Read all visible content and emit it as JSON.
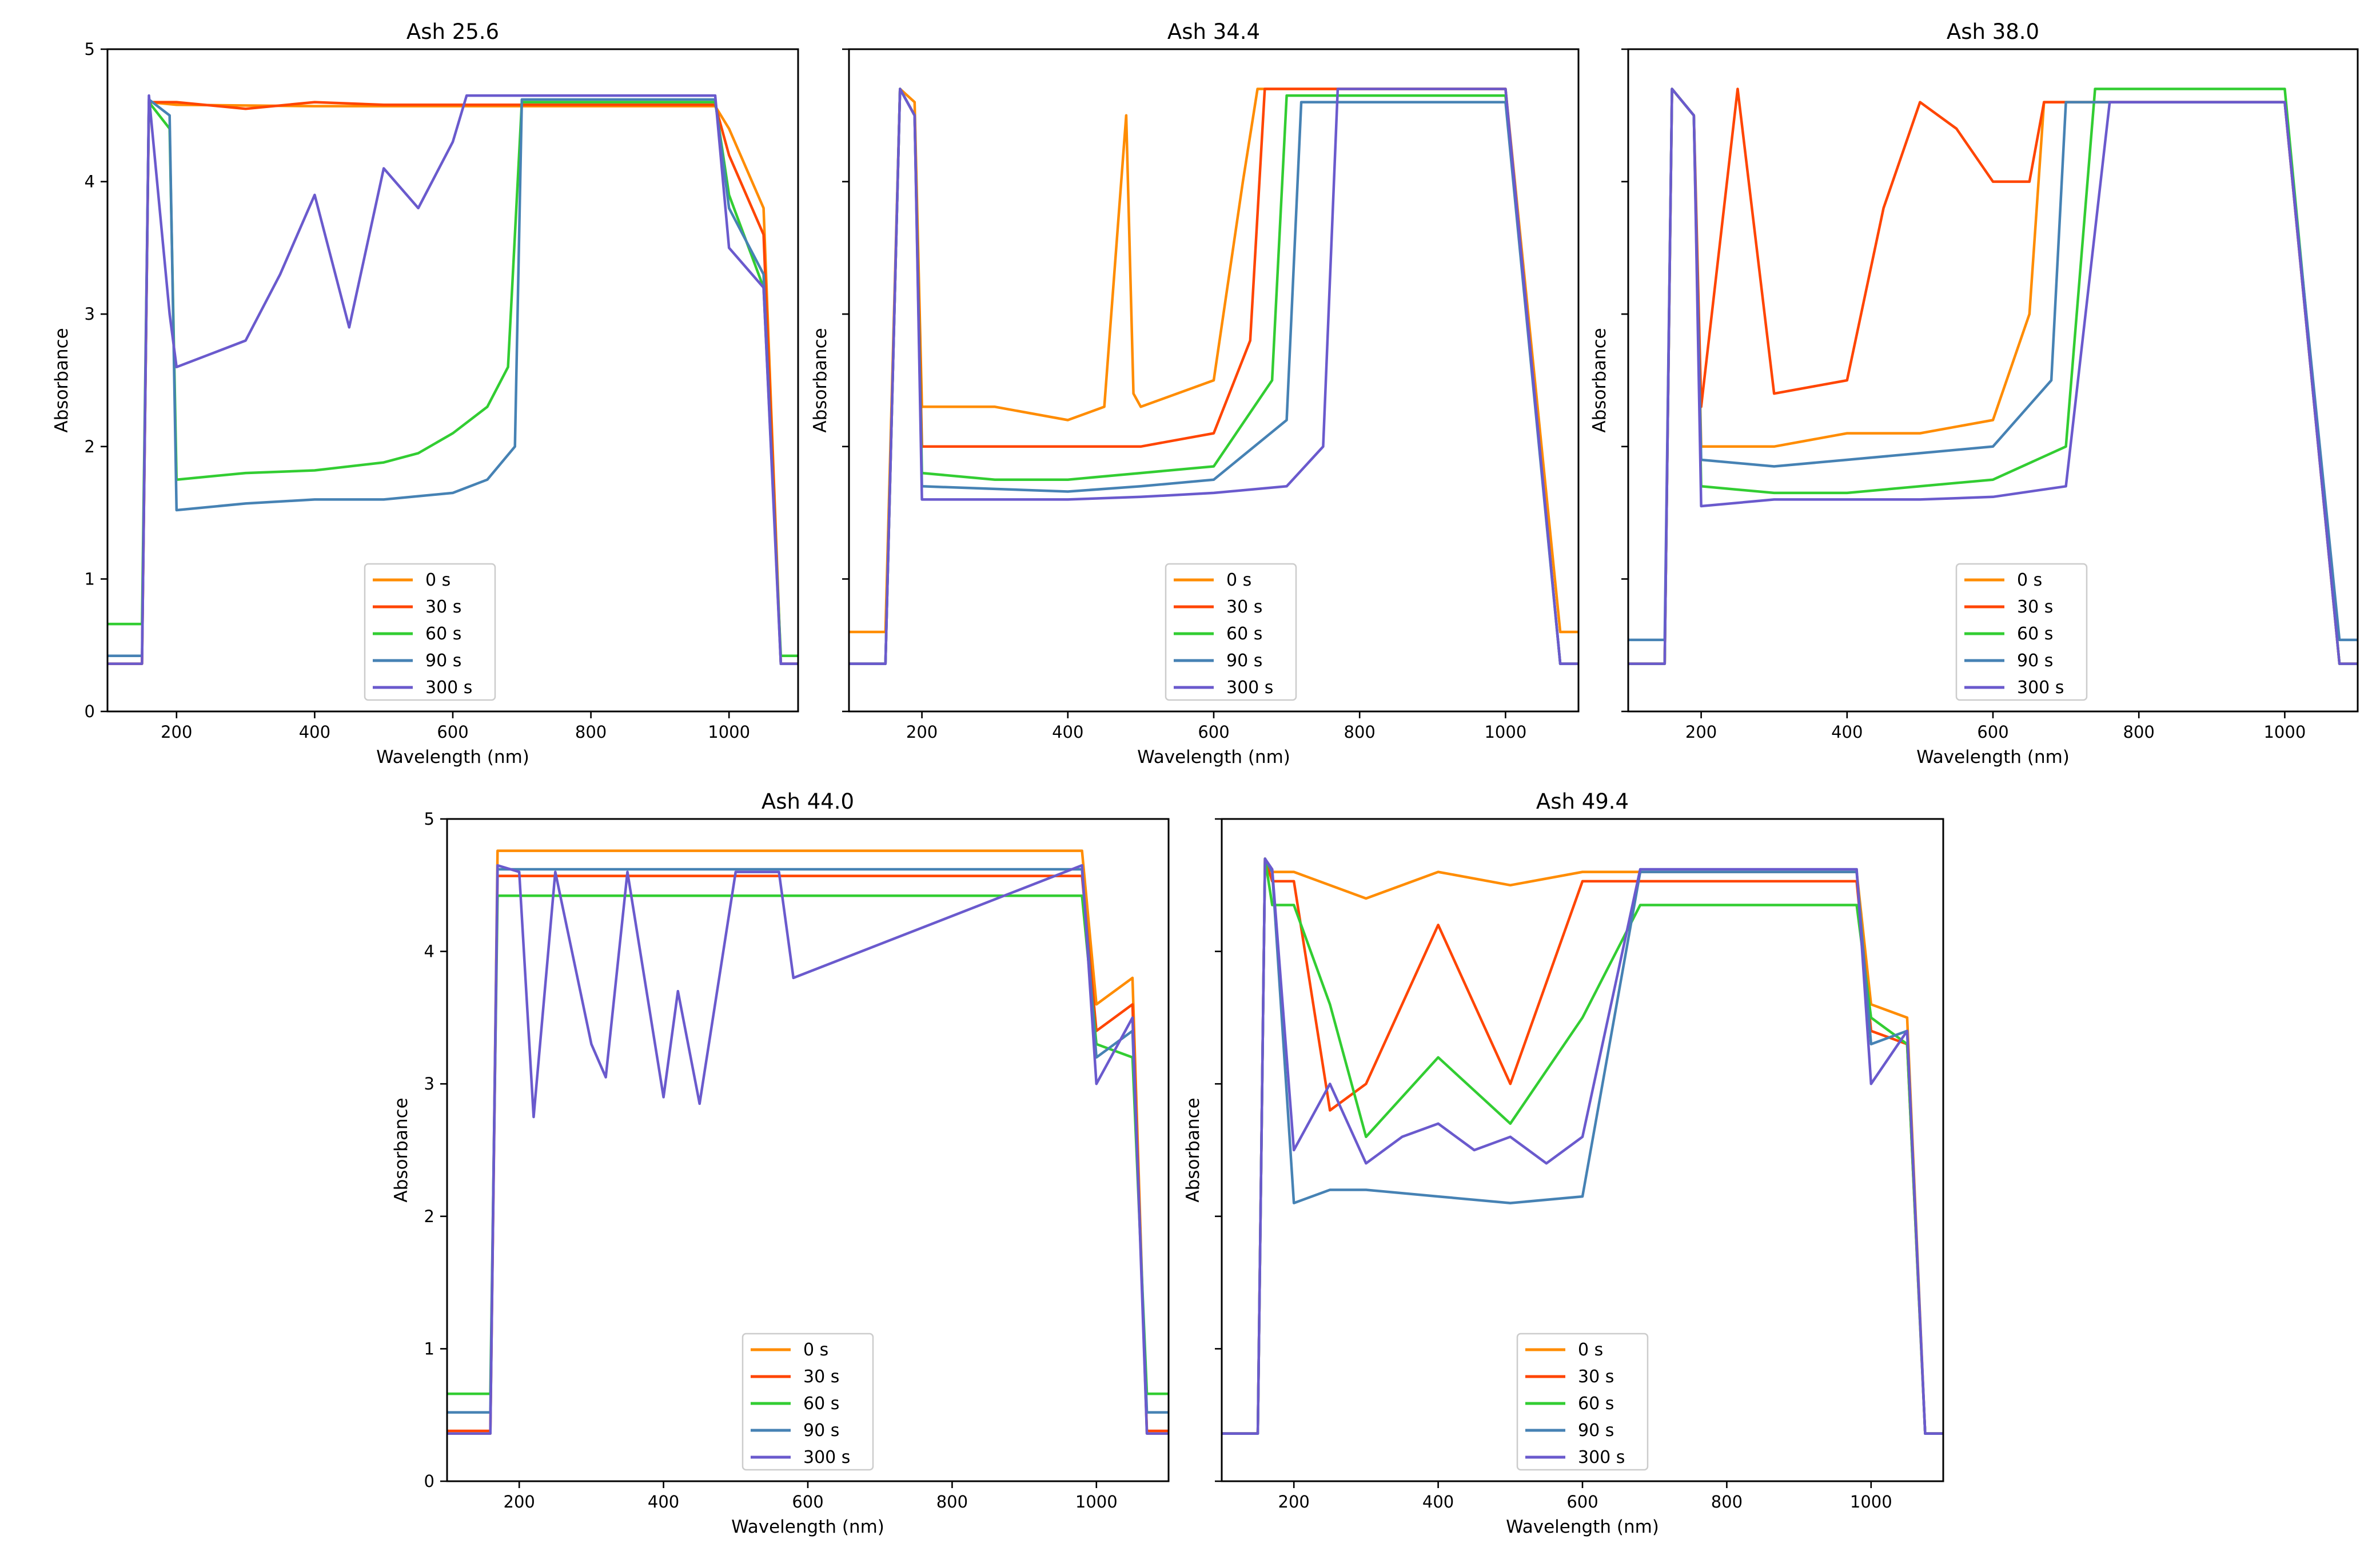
{
  "figure": {
    "x_axis_label": "Wavelength (nm)",
    "y_axis_label": "Absorbance"
  },
  "legend": [
    {
      "label": "0 s",
      "color": "#ff8c00"
    },
    {
      "label": "30 s",
      "color": "#ff4500"
    },
    {
      "label": "60 s",
      "color": "#32cd32"
    },
    {
      "label": "90 s",
      "color": "#4682b4"
    },
    {
      "label": "300 s",
      "color": "#6a5acd"
    }
  ],
  "chart_data": [
    {
      "type": "line",
      "title": "Ash 25.6",
      "xlabel": "Wavelength (nm)",
      "ylabel": "Absorbance",
      "xlim": [
        100,
        1100
      ],
      "ylim": [
        0,
        5
      ],
      "xticks": [
        200,
        400,
        600,
        800,
        1000
      ],
      "yticks": [
        0,
        1,
        2,
        3,
        4,
        5
      ],
      "legend_position": "bottom-center",
      "series": [
        {
          "name": "0 s",
          "x": [
            100,
            150,
            160,
            200,
            400,
            600,
            800,
            980,
            1000,
            1050,
            1075,
            1100
          ],
          "y": [
            0.36,
            0.36,
            4.6,
            4.58,
            4.57,
            4.57,
            4.57,
            4.57,
            4.4,
            3.8,
            0.36,
            0.36
          ]
        },
        {
          "name": "30 s",
          "x": [
            100,
            150,
            160,
            200,
            300,
            400,
            500,
            600,
            800,
            980,
            1000,
            1050,
            1075,
            1100
          ],
          "y": [
            0.36,
            0.36,
            4.6,
            4.6,
            4.55,
            4.6,
            4.58,
            4.58,
            4.58,
            4.58,
            4.2,
            3.6,
            0.36,
            0.36
          ]
        },
        {
          "name": "60 s",
          "x": [
            100,
            150,
            160,
            190,
            200,
            300,
            400,
            500,
            550,
            600,
            650,
            680,
            700,
            980,
            1000,
            1050,
            1075,
            1100
          ],
          "y": [
            0.66,
            0.66,
            4.6,
            4.4,
            1.75,
            1.8,
            1.82,
            1.88,
            1.95,
            2.1,
            2.3,
            2.6,
            4.6,
            4.6,
            3.9,
            3.2,
            0.42,
            0.42
          ]
        },
        {
          "name": "90 s",
          "x": [
            100,
            150,
            160,
            190,
            200,
            300,
            400,
            500,
            600,
            650,
            690,
            700,
            980,
            1000,
            1050,
            1075,
            1100
          ],
          "y": [
            0.42,
            0.42,
            4.62,
            4.5,
            1.52,
            1.57,
            1.6,
            1.6,
            1.65,
            1.75,
            2.0,
            4.62,
            4.62,
            3.8,
            3.3,
            0.36,
            0.36
          ]
        },
        {
          "name": "300 s",
          "x": [
            100,
            150,
            160,
            190,
            200,
            250,
            300,
            350,
            400,
            450,
            500,
            550,
            600,
            620,
            700,
            980,
            1000,
            1050,
            1075,
            1100
          ],
          "y": [
            0.36,
            0.36,
            4.65,
            3.0,
            2.6,
            2.7,
            2.8,
            3.3,
            3.9,
            2.9,
            4.1,
            3.8,
            4.3,
            4.65,
            4.65,
            4.65,
            3.5,
            3.2,
            0.36,
            0.36
          ]
        }
      ]
    },
    {
      "type": "line",
      "title": "Ash 34.4",
      "xlabel": "Wavelength (nm)",
      "ylabel": "Absorbance",
      "xlim": [
        100,
        1100
      ],
      "ylim": [
        0,
        5
      ],
      "xticks": [
        200,
        400,
        600,
        800,
        1000
      ],
      "yticks": [
        0,
        1,
        2,
        3,
        4,
        5
      ],
      "legend_position": "bottom-center",
      "series": [
        {
          "name": "0 s",
          "x": [
            100,
            150,
            170,
            190,
            200,
            300,
            400,
            450,
            480,
            490,
            500,
            600,
            640,
            660,
            1000,
            1075,
            1100
          ],
          "y": [
            0.6,
            0.6,
            4.7,
            4.6,
            2.3,
            2.3,
            2.2,
            2.3,
            4.5,
            2.4,
            2.3,
            2.5,
            4.0,
            4.7,
            4.7,
            0.6,
            0.6
          ]
        },
        {
          "name": "30 s",
          "x": [
            100,
            150,
            170,
            190,
            200,
            300,
            400,
            500,
            600,
            650,
            670,
            1000,
            1075,
            1100
          ],
          "y": [
            0.36,
            0.36,
            4.7,
            4.5,
            2.0,
            2.0,
            2.0,
            2.0,
            2.1,
            2.8,
            4.7,
            4.7,
            0.36,
            0.36
          ]
        },
        {
          "name": "60 s",
          "x": [
            100,
            150,
            170,
            190,
            200,
            300,
            400,
            500,
            600,
            680,
            700,
            1000,
            1075,
            1100
          ],
          "y": [
            0.36,
            0.36,
            4.7,
            4.5,
            1.8,
            1.75,
            1.75,
            1.8,
            1.85,
            2.5,
            4.65,
            4.65,
            0.36,
            0.36
          ]
        },
        {
          "name": "90 s",
          "x": [
            100,
            150,
            170,
            190,
            200,
            300,
            400,
            500,
            600,
            700,
            720,
            1000,
            1075,
            1100
          ],
          "y": [
            0.36,
            0.36,
            4.7,
            4.5,
            1.7,
            1.68,
            1.66,
            1.7,
            1.75,
            2.2,
            4.6,
            4.6,
            0.36,
            0.36
          ]
        },
        {
          "name": "300 s",
          "x": [
            100,
            150,
            170,
            190,
            200,
            300,
            400,
            500,
            600,
            700,
            750,
            770,
            1000,
            1075,
            1100
          ],
          "y": [
            0.36,
            0.36,
            4.7,
            4.5,
            1.6,
            1.6,
            1.6,
            1.62,
            1.65,
            1.7,
            2.0,
            4.7,
            4.7,
            0.36,
            0.36
          ]
        }
      ]
    },
    {
      "type": "line",
      "title": "Ash 38.0",
      "xlabel": "Wavelength (nm)",
      "ylabel": "Absorbance",
      "xlim": [
        100,
        1100
      ],
      "ylim": [
        0,
        5
      ],
      "xticks": [
        200,
        400,
        600,
        800,
        1000
      ],
      "yticks": [
        0,
        1,
        2,
        3,
        4,
        5
      ],
      "legend_position": "bottom-center",
      "series": [
        {
          "name": "0 s",
          "x": [
            100,
            150,
            160,
            190,
            200,
            300,
            400,
            500,
            600,
            650,
            670,
            1000,
            1075,
            1100
          ],
          "y": [
            0.36,
            0.36,
            4.7,
            4.5,
            2.0,
            2.0,
            2.1,
            2.1,
            2.2,
            3.0,
            4.6,
            4.6,
            0.36,
            0.36
          ]
        },
        {
          "name": "30 s",
          "x": [
            100,
            150,
            160,
            190,
            200,
            250,
            300,
            400,
            450,
            500,
            550,
            600,
            650,
            670,
            1000,
            1075,
            1100
          ],
          "y": [
            0.36,
            0.36,
            4.7,
            4.5,
            2.3,
            4.7,
            2.4,
            2.5,
            3.8,
            4.6,
            4.4,
            4.0,
            4.0,
            4.6,
            4.6,
            0.36,
            0.36
          ]
        },
        {
          "name": "60 s",
          "x": [
            100,
            150,
            160,
            190,
            200,
            300,
            400,
            500,
            600,
            700,
            740,
            1000,
            1075,
            1100
          ],
          "y": [
            0.36,
            0.36,
            4.7,
            4.5,
            1.7,
            1.65,
            1.65,
            1.7,
            1.75,
            2.0,
            4.7,
            4.7,
            0.36,
            0.36
          ]
        },
        {
          "name": "90 s",
          "x": [
            100,
            150,
            160,
            190,
            200,
            300,
            400,
            500,
            600,
            680,
            700,
            1000,
            1075,
            1100
          ],
          "y": [
            0.54,
            0.54,
            4.7,
            4.5,
            1.9,
            1.85,
            1.9,
            1.95,
            2.0,
            2.5,
            4.6,
            4.6,
            0.54,
            0.54
          ]
        },
        {
          "name": "300 s",
          "x": [
            100,
            150,
            160,
            190,
            200,
            300,
            400,
            500,
            600,
            700,
            760,
            1000,
            1075,
            1100
          ],
          "y": [
            0.36,
            0.36,
            4.7,
            4.5,
            1.55,
            1.6,
            1.6,
            1.6,
            1.62,
            1.7,
            4.6,
            4.6,
            0.36,
            0.36
          ]
        }
      ]
    },
    {
      "type": "line",
      "title": "Ash 44.0",
      "xlabel": "Wavelength (nm)",
      "ylabel": "Absorbance",
      "xlim": [
        100,
        1100
      ],
      "ylim": [
        0,
        5
      ],
      "xticks": [
        200,
        400,
        600,
        800,
        1000
      ],
      "yticks": [
        0,
        1,
        2,
        3,
        4,
        5
      ],
      "legend_position": "bottom-center",
      "series": [
        {
          "name": "0 s",
          "x": [
            100,
            150,
            160,
            170,
            980,
            1000,
            1050,
            1070,
            1100
          ],
          "y": [
            0.36,
            0.36,
            0.36,
            4.76,
            4.76,
            3.6,
            3.8,
            0.36,
            0.36
          ]
        },
        {
          "name": "30 s",
          "x": [
            100,
            150,
            160,
            170,
            980,
            1000,
            1050,
            1070,
            1100
          ],
          "y": [
            0.38,
            0.38,
            0.38,
            4.57,
            4.57,
            3.4,
            3.6,
            0.38,
            0.38
          ]
        },
        {
          "name": "60 s",
          "x": [
            100,
            150,
            160,
            170,
            980,
            1000,
            1050,
            1070,
            1100
          ],
          "y": [
            0.66,
            0.66,
            0.66,
            4.42,
            4.42,
            3.3,
            3.2,
            0.66,
            0.66
          ]
        },
        {
          "name": "90 s",
          "x": [
            100,
            150,
            160,
            170,
            980,
            1000,
            1050,
            1070,
            1100
          ],
          "y": [
            0.52,
            0.52,
            0.52,
            4.62,
            4.62,
            3.2,
            3.4,
            0.52,
            0.52
          ]
        },
        {
          "name": "300 s",
          "x": [
            100,
            150,
            160,
            170,
            200,
            220,
            250,
            300,
            320,
            350,
            400,
            420,
            450,
            500,
            560,
            580,
            980,
            1000,
            1050,
            1070,
            1100
          ],
          "y": [
            0.36,
            0.36,
            0.36,
            4.65,
            4.6,
            2.75,
            4.6,
            3.3,
            3.05,
            4.6,
            2.9,
            3.7,
            2.85,
            4.6,
            4.6,
            3.8,
            4.65,
            3.0,
            3.5,
            0.36,
            0.36
          ]
        }
      ]
    },
    {
      "type": "line",
      "title": "Ash 49.4",
      "xlabel": "Wavelength (nm)",
      "ylabel": "Absorbance",
      "xlim": [
        100,
        1100
      ],
      "ylim": [
        0,
        5
      ],
      "xticks": [
        200,
        400,
        600,
        800,
        1000
      ],
      "yticks": [
        0,
        1,
        2,
        3,
        4,
        5
      ],
      "legend_position": "bottom-center",
      "series": [
        {
          "name": "0 s",
          "x": [
            100,
            150,
            160,
            170,
            200,
            300,
            400,
            500,
            600,
            980,
            1000,
            1050,
            1075,
            1100
          ],
          "y": [
            0.36,
            0.36,
            4.7,
            4.6,
            4.6,
            4.4,
            4.6,
            4.5,
            4.6,
            4.6,
            3.6,
            3.5,
            0.36,
            0.36
          ]
        },
        {
          "name": "30 s",
          "x": [
            100,
            150,
            160,
            170,
            200,
            250,
            300,
            400,
            500,
            600,
            980,
            1000,
            1050,
            1075,
            1100
          ],
          "y": [
            0.36,
            0.36,
            4.7,
            4.53,
            4.53,
            2.8,
            3.0,
            4.2,
            3.0,
            4.53,
            4.53,
            3.4,
            3.3,
            0.36,
            0.36
          ]
        },
        {
          "name": "60 s",
          "x": [
            100,
            150,
            160,
            170,
            200,
            250,
            300,
            400,
            500,
            600,
            680,
            980,
            1000,
            1050,
            1075,
            1100
          ],
          "y": [
            0.36,
            0.36,
            4.7,
            4.35,
            4.35,
            3.6,
            2.6,
            3.2,
            2.7,
            3.5,
            4.35,
            4.35,
            3.5,
            3.3,
            0.36,
            0.36
          ]
        },
        {
          "name": "90 s",
          "x": [
            100,
            150,
            160,
            170,
            200,
            250,
            300,
            400,
            500,
            600,
            680,
            980,
            1000,
            1050,
            1075,
            1100
          ],
          "y": [
            0.36,
            0.36,
            4.7,
            4.6,
            2.1,
            2.2,
            2.2,
            2.15,
            2.1,
            2.15,
            4.6,
            4.6,
            3.3,
            3.4,
            0.36,
            0.36
          ]
        },
        {
          "name": "300 s",
          "x": [
            100,
            150,
            160,
            170,
            200,
            250,
            300,
            350,
            400,
            450,
            500,
            550,
            600,
            680,
            980,
            1000,
            1050,
            1075,
            1100
          ],
          "y": [
            0.36,
            0.36,
            4.7,
            4.62,
            2.5,
            3.0,
            2.4,
            2.6,
            2.7,
            2.5,
            2.6,
            2.4,
            2.6,
            4.62,
            4.62,
            3.0,
            3.4,
            0.36,
            0.36
          ]
        }
      ]
    }
  ]
}
